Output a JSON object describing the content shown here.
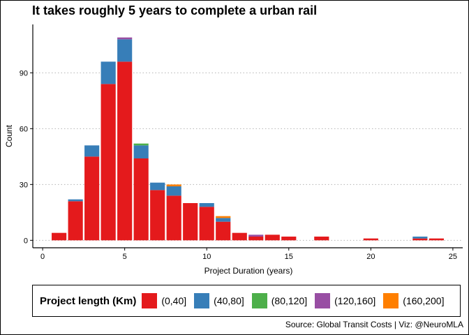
{
  "chart_data": {
    "type": "bar",
    "stacked": true,
    "title": "It takes roughly 5 years to complete a urban rail",
    "xlabel": "Project Duration (years)",
    "ylabel": "Count",
    "xlim": [
      -0.6,
      25.6
    ],
    "ylim": [
      -4,
      116
    ],
    "x_ticks": [
      0,
      5,
      10,
      15,
      20,
      25
    ],
    "y_ticks": [
      0,
      30,
      60,
      90
    ],
    "grid": "horizontal dotted",
    "legend_title": "Project length (Km)",
    "legend_position": "bottom",
    "x": [
      1,
      2,
      3,
      4,
      5,
      6,
      7,
      8,
      9,
      10,
      11,
      12,
      13,
      14,
      15,
      17,
      20,
      23,
      24
    ],
    "series": [
      {
        "name": "(0,40]",
        "color": "#E41A1C",
        "values": [
          4,
          21,
          45,
          84,
          96,
          44,
          27,
          24,
          20,
          18,
          10,
          4,
          2,
          3,
          2,
          2,
          1,
          1,
          1
        ]
      },
      {
        "name": "(40,80]",
        "color": "#377EB8",
        "values": [
          0,
          1,
          6,
          12,
          12,
          7,
          4,
          5,
          0,
          2,
          2,
          0,
          0,
          0,
          0,
          0,
          0,
          1,
          0
        ]
      },
      {
        "name": "(80,120]",
        "color": "#4DAF4A",
        "values": [
          0,
          0,
          0,
          0,
          0,
          1,
          0,
          0,
          0,
          0,
          0,
          0,
          0,
          0,
          0,
          0,
          0,
          0,
          0
        ]
      },
      {
        "name": "(120,160]",
        "color": "#984EA3",
        "values": [
          0,
          0,
          0,
          0,
          1,
          0,
          0,
          0,
          0,
          0,
          0,
          0,
          1,
          0,
          0,
          0,
          0,
          0,
          0
        ]
      },
      {
        "name": "(160,200]",
        "color": "#FF7F00",
        "values": [
          0,
          0,
          0,
          0,
          0,
          0,
          0,
          1,
          0,
          0,
          1,
          0,
          0,
          0,
          0,
          0,
          0,
          0,
          0
        ]
      }
    ]
  },
  "caption": "Source: Global Transit Costs | Viz: @NeuroMLA"
}
